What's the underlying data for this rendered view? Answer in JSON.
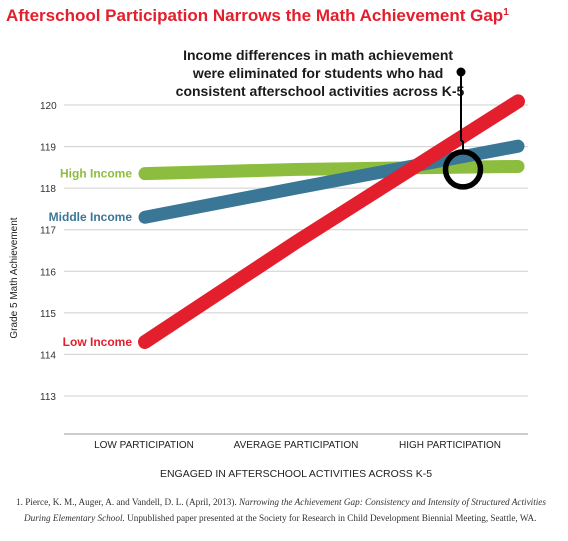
{
  "title": "Afterschool Participation Narrows the Math Achievement Gap",
  "title_superscript": "1",
  "annotation": {
    "lines": [
      "Income differences in math achievement",
      "were eliminated for students who had",
      "consistent afterschool activities across K-5"
    ]
  },
  "footnote": {
    "line1_plain": "1. Pierce, K. M., Auger, A. and Vandell, D. L. (April, 2013). ",
    "line1_italic": "Narrowing the Achievement Gap: Consistency and Intensity of Structured Activities",
    "line2_italic": "During Elementary School.",
    "line2_plain": " Unpublished paper presented at the Society for Research in Child Development Biennial Meeting, Seattle, WA."
  },
  "colors": {
    "title": "#e31e2d",
    "high_income": "#8dbd3f",
    "middle_income": "#3a7796",
    "low_income": "#e31e2d",
    "grid": "#cfcfcf",
    "marker": "#000000"
  },
  "chart_data": {
    "type": "line",
    "title": "Afterschool Participation Narrows the Math Achievement Gap",
    "xlabel": "ENGAGED IN AFTERSCHOOL ACTIVITIES ACROSS K-5",
    "ylabel": "Grade 5 Math Achievement",
    "categories": [
      "LOW PARTICIPATION",
      "AVERAGE PARTICIPATION",
      "HIGH PARTICIPATION"
    ],
    "ylim": [
      112.1,
      120
    ],
    "yticks": [
      113,
      114,
      115,
      116,
      117,
      118,
      119,
      120
    ],
    "grid": true,
    "legend": "inline-left",
    "series": [
      {
        "name": "High Income",
        "color": "#8dbd3f",
        "values": [
          118.35,
          118.45,
          118.5
        ]
      },
      {
        "name": "Middle Income",
        "color": "#3a7796",
        "values": [
          117.3,
          118.0,
          118.7
        ]
      },
      {
        "name": "Low Income",
        "color": "#e31e2d",
        "values": [
          114.3,
          116.7,
          119.05
        ]
      }
    ],
    "annotation_marker": {
      "category": "HIGH PARTICIPATION",
      "value": 118.45,
      "shape": "circle"
    }
  }
}
